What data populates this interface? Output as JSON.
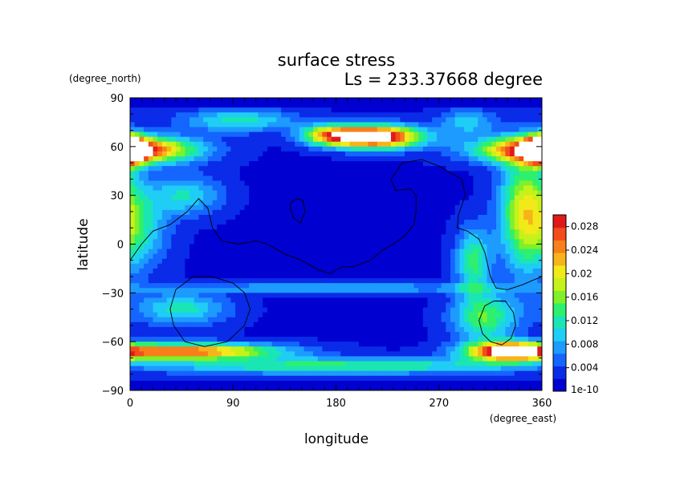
{
  "chart_data": {
    "type": "heatmap",
    "title": "surface stress",
    "subtitle": "Ls = 233.37668 degree",
    "xlabel": "longitude",
    "ylabel": "latitude",
    "x_units": "(degree_east)",
    "y_units": "(degree_north)",
    "xlim": [
      0,
      360
    ],
    "ylim": [
      -90,
      90
    ],
    "x_ticks": [
      "0",
      "90",
      "180",
      "270",
      "360"
    ],
    "y_ticks": [
      "90",
      "60",
      "30",
      "0",
      "−30",
      "−60",
      "−90"
    ],
    "colorbar": {
      "min_label": "1e-10",
      "labels": [
        "0.004",
        "0.008",
        "0.012",
        "0.016",
        "0.02",
        "0.024",
        "0.028"
      ],
      "range": [
        0,
        0.03
      ],
      "colors": [
        "#0000d0",
        "#0a2be8",
        "#1565ff",
        "#1d9bff",
        "#1fcdf5",
        "#1ae6b4",
        "#2ef06e",
        "#7ff02a",
        "#c5f21a",
        "#f2e91a",
        "#f7b41a",
        "#f7801a",
        "#f24d1a",
        "#e01a1a"
      ]
    },
    "blobs": [
      {
        "lon": 0,
        "lat": 58,
        "rlon": 55,
        "rlat": 8,
        "v": 0.03
      },
      {
        "lon": 360,
        "lat": 58,
        "rlon": 12,
        "rlat": 8,
        "v": 0.03
      },
      {
        "lon": 215,
        "lat": 66,
        "rlon": 40,
        "rlat": 7,
        "v": 0.032
      },
      {
        "lon": 175,
        "lat": 67,
        "rlon": 25,
        "rlat": 6,
        "v": 0.016
      },
      {
        "lon": 95,
        "lat": 76,
        "rlon": 50,
        "rlat": 7,
        "v": 0.01
      },
      {
        "lon": 295,
        "lat": 75,
        "rlon": 25,
        "rlat": 8,
        "v": 0.008
      },
      {
        "lon": 345,
        "lat": 20,
        "rlon": 22,
        "rlat": 35,
        "v": 0.017
      },
      {
        "lon": 300,
        "lat": -10,
        "rlon": 15,
        "rlat": 20,
        "v": 0.012
      },
      {
        "lon": 10,
        "lat": 10,
        "rlon": 25,
        "rlat": 25,
        "v": 0.008
      },
      {
        "lon": 45,
        "lat": -40,
        "rlon": 40,
        "rlat": 10,
        "v": 0.01
      },
      {
        "lon": 50,
        "lat": -66,
        "rlon": 80,
        "rlat": 5,
        "v": 0.024
      },
      {
        "lon": 330,
        "lat": -66,
        "rlon": 35,
        "rlat": 6,
        "v": 0.026
      },
      {
        "lon": 310,
        "lat": -45,
        "rlon": 28,
        "rlat": 15,
        "v": 0.013
      },
      {
        "lon": 180,
        "lat": -75,
        "rlon": 170,
        "rlat": 5,
        "v": 0.012
      },
      {
        "lon": 180,
        "lat": -27,
        "rlon": 170,
        "rlat": 3,
        "v": 0.007
      },
      {
        "lon": 50,
        "lat": 30,
        "rlon": 30,
        "rlat": 12,
        "v": 0.009
      }
    ],
    "topography_contours": [
      {
        "closed": false,
        "lonlat": [
          [
            0,
            -10
          ],
          [
            10,
            0
          ],
          [
            20,
            8
          ],
          [
            35,
            12
          ],
          [
            50,
            20
          ],
          [
            60,
            28
          ],
          [
            68,
            22
          ],
          [
            72,
            10
          ],
          [
            80,
            2
          ],
          [
            95,
            0
          ],
          [
            110,
            2
          ],
          [
            120,
            0
          ],
          [
            135,
            -6
          ],
          [
            150,
            -10
          ],
          [
            165,
            -16
          ],
          [
            175,
            -18
          ],
          [
            185,
            -14
          ],
          [
            195,
            -14
          ],
          [
            210,
            -10
          ],
          [
            220,
            -4
          ],
          [
            230,
            0
          ],
          [
            240,
            5
          ],
          [
            248,
            12
          ],
          [
            250,
            20
          ],
          [
            250,
            30
          ],
          [
            245,
            34
          ],
          [
            232,
            33
          ],
          [
            228,
            40
          ],
          [
            238,
            50
          ],
          [
            255,
            52
          ],
          [
            270,
            48
          ],
          [
            282,
            43
          ],
          [
            290,
            40
          ],
          [
            293,
            30
          ],
          [
            287,
            18
          ],
          [
            286,
            10
          ],
          [
            295,
            8
          ],
          [
            305,
            3
          ],
          [
            310,
            -5
          ],
          [
            315,
            -20
          ],
          [
            320,
            -27
          ],
          [
            330,
            -28
          ],
          [
            343,
            -25
          ],
          [
            353,
            -22
          ],
          [
            360,
            -20
          ]
        ]
      },
      {
        "closed": true,
        "lonlat": [
          [
            35,
            -40
          ],
          [
            40,
            -28
          ],
          [
            55,
            -20
          ],
          [
            72,
            -20
          ],
          [
            90,
            -24
          ],
          [
            100,
            -30
          ],
          [
            105,
            -40
          ],
          [
            100,
            -50
          ],
          [
            85,
            -60
          ],
          [
            65,
            -63
          ],
          [
            48,
            -60
          ],
          [
            38,
            -50
          ]
        ]
      },
      {
        "closed": true,
        "lonlat": [
          [
            140,
            25
          ],
          [
            145,
            28
          ],
          [
            151,
            27
          ],
          [
            153,
            20
          ],
          [
            149,
            13
          ],
          [
            143,
            16
          ],
          [
            140,
            22
          ]
        ]
      },
      {
        "closed": true,
        "lonlat": [
          [
            305,
            -47
          ],
          [
            310,
            -38
          ],
          [
            318,
            -35
          ],
          [
            328,
            -35
          ],
          [
            335,
            -42
          ],
          [
            337,
            -50
          ],
          [
            333,
            -58
          ],
          [
            325,
            -62
          ],
          [
            315,
            -60
          ],
          [
            308,
            -55
          ]
        ]
      }
    ]
  }
}
